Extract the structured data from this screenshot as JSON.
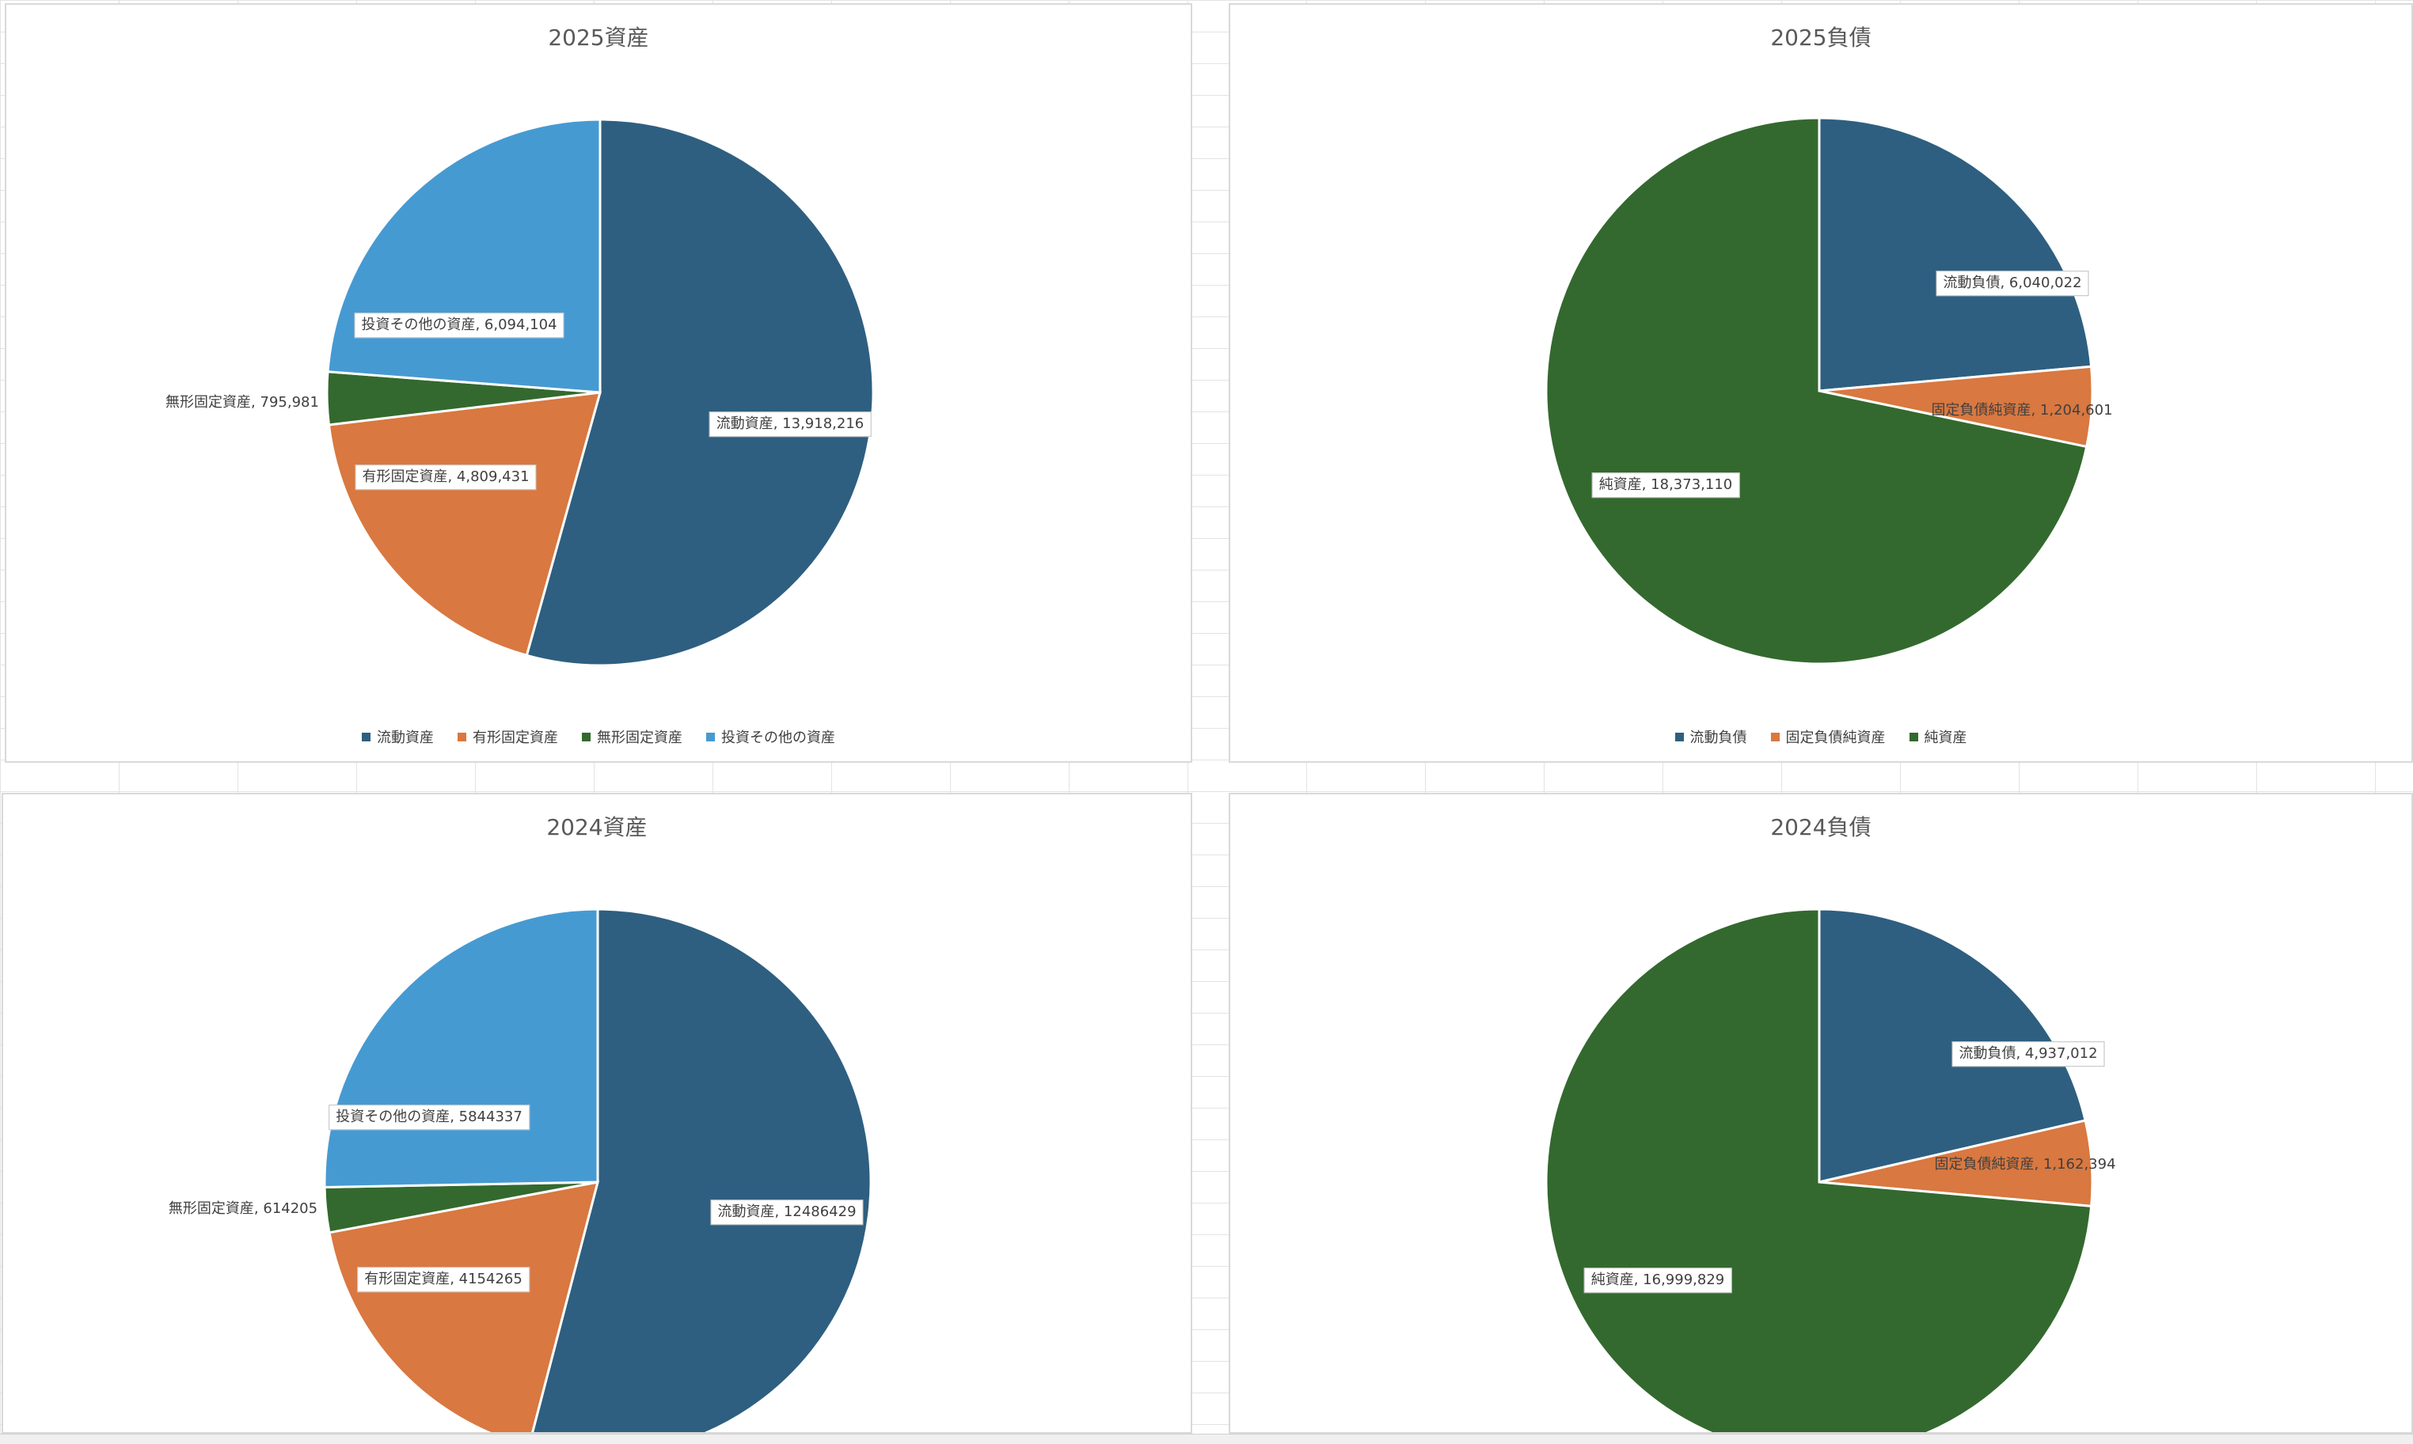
{
  "colors": {
    "blue": "#2e5f80",
    "orange": "#d97840",
    "green": "#33692e",
    "lightblue": "#469ad2"
  },
  "chart_data": [
    {
      "type": "pie",
      "title": "2025資産",
      "categories": [
        "流動資産",
        "有形固定資産",
        "無形固定資産",
        "投資その他の資産"
      ],
      "values": [
        13918216,
        4809431,
        795981,
        6094104
      ],
      "labels": [
        "流動資産, 13,918,216",
        "有形固定資産, 4,809,431",
        "無形固定資産, 795,981",
        "投資その他の資産, 6,094,104"
      ],
      "colors": [
        "#2e5f80",
        "#d97840",
        "#33692e",
        "#469ad2"
      ],
      "legend": "bottom"
    },
    {
      "type": "pie",
      "title": "2025負債",
      "categories": [
        "流動負債",
        "固定負債純資産",
        "純資産"
      ],
      "values": [
        6040022,
        1204601,
        18373110
      ],
      "labels": [
        "流動負債, 6,040,022",
        "固定負債純資産, 1,204,601",
        "純資産, 18,373,110"
      ],
      "colors": [
        "#2e5f80",
        "#d97840",
        "#33692e"
      ],
      "legend": "bottom"
    },
    {
      "type": "pie",
      "title": "2024資産",
      "categories": [
        "流動資産",
        "有形固定資産",
        "無形固定資産",
        "投資その他の資産"
      ],
      "values": [
        12486429,
        4154265,
        614205,
        5844337
      ],
      "labels": [
        "流動資産, 12486429",
        "有形固定資産, 4154265",
        "無形固定資産, 614205",
        "投資その他の資産, 5844337"
      ],
      "colors": [
        "#2e5f80",
        "#d97840",
        "#33692e",
        "#469ad2"
      ],
      "legend": "none"
    },
    {
      "type": "pie",
      "title": "2024負債",
      "categories": [
        "流動負債",
        "固定負債純資産",
        "純資産"
      ],
      "values": [
        4937012,
        1162394,
        16999829
      ],
      "labels": [
        "流動負債, 4,937,012",
        "固定負債純資産, 1,162,394",
        "純資産, 16,999,829"
      ],
      "colors": [
        "#2e5f80",
        "#d97840",
        "#33692e"
      ],
      "legend": "none"
    }
  ]
}
